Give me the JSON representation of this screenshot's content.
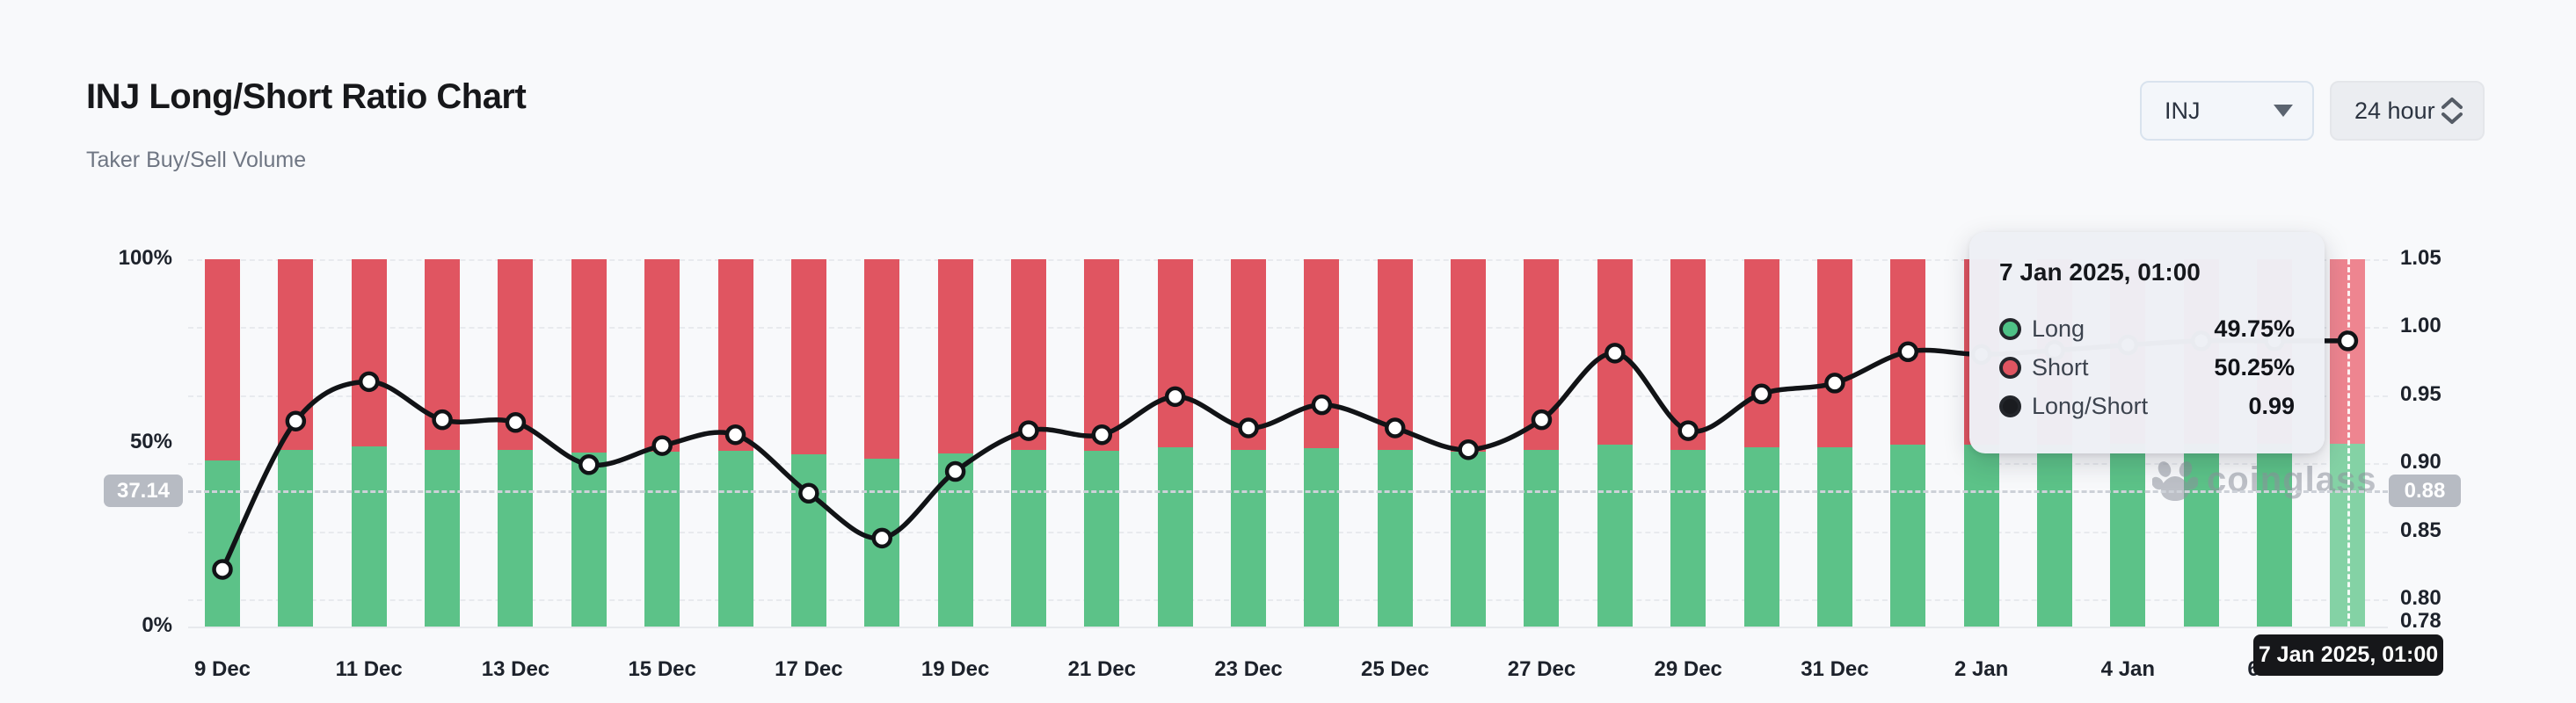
{
  "header": {
    "title": "INJ Long/Short Ratio Chart",
    "subtitle": "Taker Buy/Sell Volume"
  },
  "controls": {
    "symbol_select": {
      "value": "INJ"
    },
    "interval_select": {
      "value": "24 hour"
    }
  },
  "watermark": {
    "text": "coinglass"
  },
  "tooltip": {
    "title": "7 Jan 2025, 01:00",
    "rows": [
      {
        "label": "Long",
        "value": "49.75%",
        "color": "#4ec186"
      },
      {
        "label": "Short",
        "value": "50.25%",
        "color": "#e05561"
      },
      {
        "label": "Long/Short",
        "value": "0.99",
        "color": "#1a1c20"
      }
    ]
  },
  "chart_data": {
    "type": "bar",
    "subtype": "stacked-bars-with-line",
    "x": [
      "9 Dec",
      "10 Dec",
      "11 Dec",
      "12 Dec",
      "13 Dec",
      "14 Dec",
      "15 Dec",
      "16 Dec",
      "17 Dec",
      "18 Dec",
      "19 Dec",
      "20 Dec",
      "21 Dec",
      "22 Dec",
      "23 Dec",
      "24 Dec",
      "25 Dec",
      "26 Dec",
      "27 Dec",
      "28 Dec",
      "29 Dec",
      "30 Dec",
      "31 Dec",
      "1 Jan",
      "2 Jan",
      "3 Jan",
      "4 Jan",
      "5 Jan",
      "6 Jan",
      "7 Jan"
    ],
    "x_tick_step": 2,
    "series": [
      {
        "name": "Long",
        "type": "bar",
        "color": "#5cc288",
        "highlight_color": "#84d2a5",
        "values": [
          45.1,
          48.2,
          49.0,
          48.2,
          48.2,
          47.3,
          47.7,
          47.9,
          46.8,
          45.8,
          47.2,
          48.0,
          47.9,
          48.7,
          48.1,
          48.5,
          48.1,
          47.6,
          48.2,
          49.5,
          48.0,
          48.7,
          48.9,
          49.5,
          49.5,
          49.6,
          49.65,
          49.7,
          49.7,
          49.75
        ]
      },
      {
        "name": "Short",
        "type": "bar",
        "color": "#e05561",
        "highlight_color": "#ee8590",
        "values": [
          54.9,
          51.8,
          51.0,
          51.8,
          51.8,
          52.7,
          52.3,
          52.1,
          53.2,
          54.2,
          52.8,
          52.0,
          52.1,
          51.3,
          51.9,
          51.5,
          51.9,
          52.4,
          51.8,
          50.5,
          52.0,
          51.3,
          51.1,
          50.5,
          50.5,
          50.4,
          50.35,
          50.3,
          50.3,
          50.25
        ]
      },
      {
        "name": "Long/Short",
        "type": "line",
        "color": "#111316",
        "values": [
          0.822,
          0.931,
          0.96,
          0.932,
          0.93,
          0.899,
          0.913,
          0.921,
          0.878,
          0.845,
          0.894,
          0.924,
          0.921,
          0.949,
          0.926,
          0.943,
          0.926,
          0.91,
          0.932,
          0.981,
          0.924,
          0.951,
          0.959,
          0.982,
          0.98,
          0.983,
          0.987,
          0.99,
          0.99,
          0.99
        ]
      }
    ],
    "left_axis": {
      "tick_labels": [
        "100%",
        "50%",
        "0%"
      ],
      "tick_values": [
        100,
        50,
        0
      ],
      "range": [
        0,
        100
      ],
      "current": {
        "label": "37.14",
        "value": 37.14
      }
    },
    "right_axis": {
      "tick_labels": [
        "1.05",
        "1.00",
        "0.95",
        "0.90",
        "0.85",
        "0.80",
        "0.78"
      ],
      "tick_values": [
        1.05,
        1.0,
        0.95,
        0.9,
        0.85,
        0.8,
        0.78
      ],
      "range": [
        0.78,
        1.05
      ],
      "grid_values": [
        1.05,
        1.0,
        0.95,
        0.9,
        0.85,
        0.8
      ],
      "current": {
        "label": "0.88",
        "value": 0.88
      }
    },
    "highlight": {
      "index": 29,
      "axis_badge": "7 Jan 2025, 01:00"
    },
    "legend_position": "tooltip-only",
    "grid": true
  }
}
